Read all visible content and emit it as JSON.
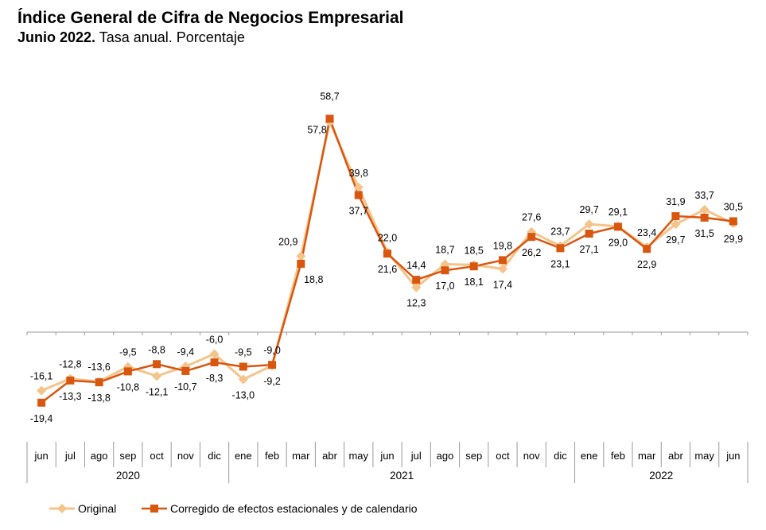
{
  "title": "Índice General de Cifra de Negocios Empresarial",
  "subtitle_bold": "Junio 2022.",
  "subtitle_rest": " Tasa anual. Porcentaje",
  "chart_data": {
    "type": "line",
    "categories": [
      "jun",
      "jul",
      "ago",
      "sep",
      "oct",
      "nov",
      "dic",
      "ene",
      "feb",
      "mar",
      "abr",
      "may",
      "jun",
      "jul",
      "ago",
      "sep",
      "oct",
      "nov",
      "dic",
      "ene",
      "feb",
      "mar",
      "abr",
      "may",
      "jun"
    ],
    "years": [
      {
        "label": "2020",
        "start": 0,
        "end": 6
      },
      {
        "label": "2021",
        "start": 7,
        "end": 18
      },
      {
        "label": "2022",
        "start": 19,
        "end": 24
      }
    ],
    "series": [
      {
        "name": "Original",
        "color": "#F5C48A",
        "marker": "diamond",
        "values": [
          -16.1,
          -12.8,
          -13.6,
          -9.5,
          -12.1,
          -9.4,
          -6.0,
          -13.0,
          -9.2,
          20.9,
          57.8,
          39.8,
          22.0,
          12.3,
          18.7,
          18.5,
          17.4,
          27.6,
          23.7,
          29.7,
          29.1,
          23.4,
          29.7,
          33.7,
          29.9
        ]
      },
      {
        "name": "Corregido de efectos estacionales y de calendario",
        "color": "#D9560F",
        "marker": "square",
        "values": [
          -19.4,
          -13.3,
          -13.8,
          -10.8,
          -8.8,
          -10.7,
          -8.3,
          -9.5,
          -9.0,
          18.8,
          58.7,
          37.7,
          21.6,
          14.4,
          17.0,
          18.1,
          19.8,
          26.2,
          23.1,
          27.1,
          29.0,
          22.9,
          31.9,
          31.5,
          30.5
        ]
      }
    ],
    "labels": {
      "original": [
        "-16,1",
        "-12,8",
        "-13,6",
        "-9,5",
        "-12,1",
        "-9,4",
        "-6,0",
        "-13,0",
        "-9,2",
        "20,9",
        "57,8",
        "39,8",
        "22,0",
        "12,3",
        "18,7",
        "18,5",
        "17,4",
        "27,6",
        "23,7",
        "29,7",
        "29,1",
        "23,4",
        "29,7",
        "33,7",
        "29,9"
      ],
      "corrected": [
        "-19,4",
        "-13,3",
        "-13,8",
        "-10,8",
        "-8,8",
        "-10,7",
        "-8,3",
        "-9,5",
        "-9,0",
        "18,8",
        "58,7",
        "37,7",
        "21,6",
        "14,4",
        "17,0",
        "18,1",
        "19,8",
        "26,2",
        "23,1",
        "27,1",
        "29,0",
        "22,9",
        "31,9",
        "31,5",
        "30,5"
      ]
    },
    "legend": "bottom-left",
    "grid": false
  }
}
